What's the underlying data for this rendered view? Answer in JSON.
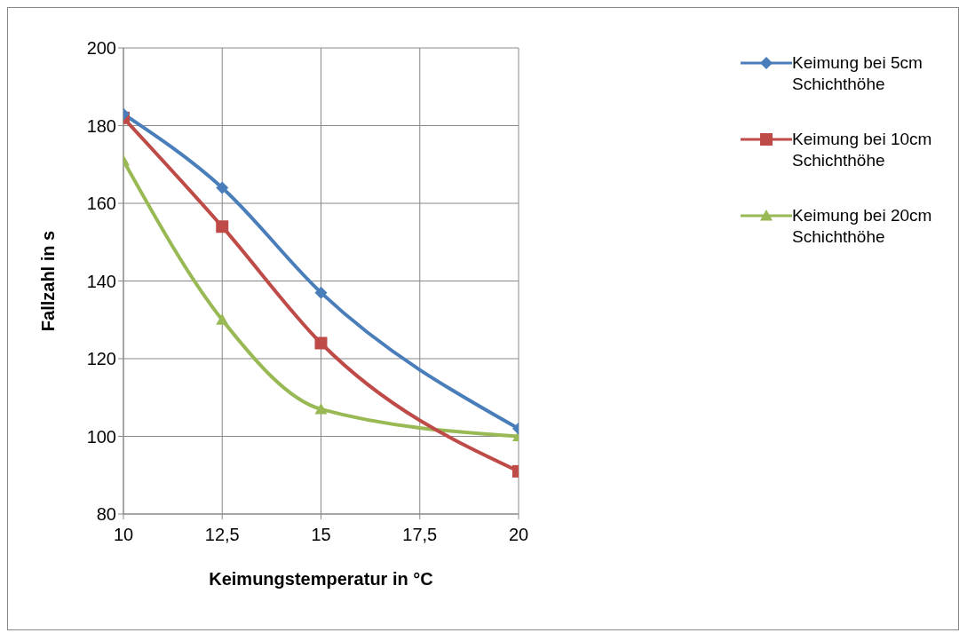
{
  "chart_data": {
    "type": "line",
    "xlabel": "Keimungstemperatur in °C",
    "ylabel": "Fallzahl in s",
    "x": [
      10,
      12.5,
      15,
      20
    ],
    "series": [
      {
        "name": "Keimung bei 5cm Schichthöhe",
        "color": "#4a7ebb",
        "marker": "diamond",
        "values": [
          183,
          164,
          137,
          102
        ]
      },
      {
        "name": "Keimung bei 10cm Schichthöhe",
        "color": "#be4b48",
        "marker": "square",
        "values": [
          182,
          154,
          124,
          91
        ]
      },
      {
        "name": "Keimung bei 20cm Schichthöhe",
        "color": "#98b954",
        "marker": "triangle",
        "values": [
          171,
          130,
          107,
          100
        ]
      }
    ],
    "xlim": [
      10,
      20
    ],
    "xticks": [
      10,
      {
        "value": 12.5,
        "label": "12,5"
      },
      15,
      {
        "value": 17.5,
        "label": "17,5"
      },
      20
    ],
    "ylim": [
      80,
      200
    ],
    "yticks": [
      80,
      100,
      120,
      140,
      160,
      180,
      200
    ],
    "grid": true,
    "legend": "right"
  }
}
